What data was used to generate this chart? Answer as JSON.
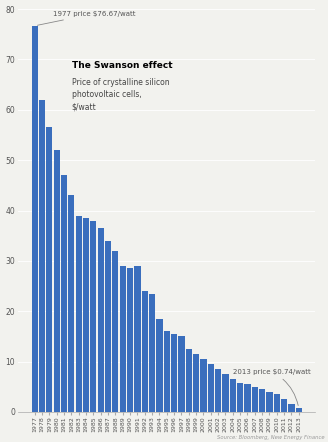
{
  "title": "The Swanson effect",
  "subtitle": "Price of crystalline silicon\nphotovoltaic cells,\n$/watt",
  "source": "Source: Bloomberg, New Energy Finance",
  "annotation_1977": "1977 price $76.67/watt",
  "annotation_2013": "2013 price $0.74/watt",
  "bar_color": "#3a6ebd",
  "bg_color": "#f2f2ee",
  "years": [
    1977,
    1978,
    1979,
    1980,
    1981,
    1982,
    1983,
    1984,
    1985,
    1986,
    1987,
    1988,
    1989,
    1990,
    1991,
    1992,
    1993,
    1994,
    1995,
    1996,
    1997,
    1998,
    1999,
    2000,
    2001,
    2002,
    2003,
    2004,
    2005,
    2006,
    2007,
    2008,
    2009,
    2010,
    2011,
    2012,
    2013
  ],
  "values": [
    76.67,
    62.0,
    56.5,
    52.0,
    47.0,
    43.0,
    39.0,
    38.5,
    38.0,
    36.5,
    34.0,
    32.0,
    29.0,
    28.5,
    29.0,
    24.0,
    23.5,
    18.5,
    16.0,
    15.5,
    15.0,
    12.5,
    11.5,
    10.5,
    9.5,
    8.5,
    7.5,
    6.5,
    5.8,
    5.5,
    5.0,
    4.5,
    4.0,
    3.5,
    2.5,
    1.5,
    0.74
  ],
  "ylim": [
    0,
    80
  ],
  "yticks": [
    0,
    10,
    20,
    30,
    40,
    50,
    60,
    70,
    80
  ]
}
